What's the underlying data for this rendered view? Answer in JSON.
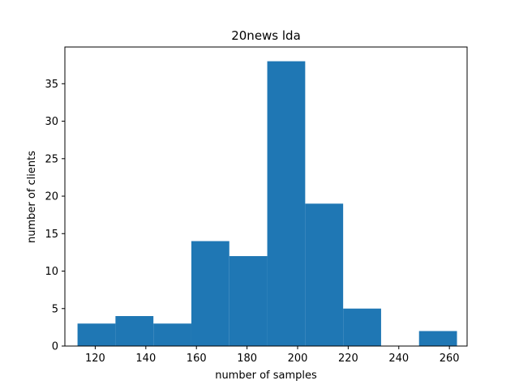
{
  "chart_data": {
    "type": "bar",
    "title": "20news lda",
    "xlabel": "number of samples",
    "ylabel": "number of clients",
    "xlim": [
      108,
      267
    ],
    "ylim": [
      0,
      39.9
    ],
    "x_ticks": [
      120,
      140,
      160,
      180,
      200,
      220,
      240,
      260
    ],
    "y_ticks": [
      0,
      5,
      10,
      15,
      20,
      25,
      30,
      35
    ],
    "bins": [
      {
        "start": 113,
        "end": 128,
        "count": 3
      },
      {
        "start": 128,
        "end": 143,
        "count": 4
      },
      {
        "start": 143,
        "end": 158,
        "count": 3
      },
      {
        "start": 158,
        "end": 173,
        "count": 14
      },
      {
        "start": 173,
        "end": 188,
        "count": 12
      },
      {
        "start": 188,
        "end": 203,
        "count": 38
      },
      {
        "start": 203,
        "end": 218,
        "count": 19
      },
      {
        "start": 218,
        "end": 233,
        "count": 5
      },
      {
        "start": 233,
        "end": 248,
        "count": 0
      },
      {
        "start": 248,
        "end": 263,
        "count": 2
      }
    ],
    "bar_color": "#1f77b4",
    "grid": false
  }
}
